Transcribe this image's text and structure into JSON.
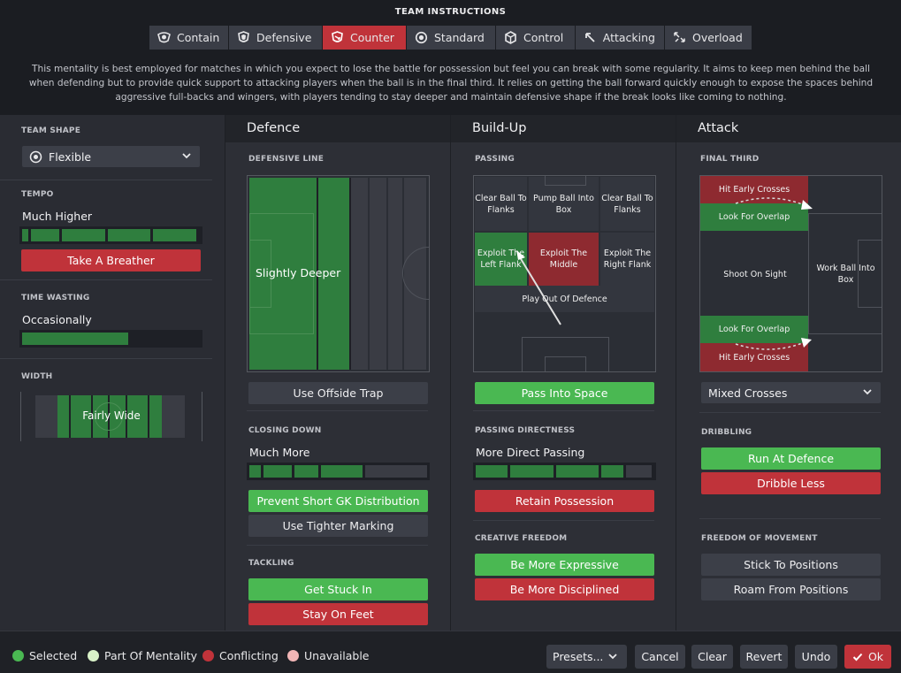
{
  "header": {
    "title": "TEAM INSTRUCTIONS",
    "tabs": [
      {
        "label": "Contain",
        "icon": "contain-shield-icon",
        "active": false
      },
      {
        "label": "Defensive",
        "icon": "defensive-shield-icon",
        "active": false
      },
      {
        "label": "Counter",
        "icon": "counter-icon",
        "active": true
      },
      {
        "label": "Standard",
        "icon": "standard-icon",
        "active": false
      },
      {
        "label": "Control",
        "icon": "control-icon",
        "active": false
      },
      {
        "label": "Attacking",
        "icon": "attacking-arrow-icon",
        "active": false
      },
      {
        "label": "Overload",
        "icon": "overload-arrows-icon",
        "active": false
      }
    ],
    "description": "This mentality is best employed for matches in which you expect to lose the battle for possession but feel you can break with some regularity.  It aims to keep men behind the ball when defending but to provide quick support to attacking players when the ball is in the final third. It relies on getting the ball forward quickly enough to expose the spaces behind aggressive full-backs and wingers, with players tending to stay deeper and maintain defensive shape if the break looks like coming to nothing."
  },
  "left": {
    "team_shape_label": "TEAM SHAPE",
    "team_shape_value": "Flexible",
    "tempo_label": "TEMPO",
    "tempo_value": "Much Higher",
    "tempo_level": 1.0,
    "tempo_button": "Take A Breather",
    "time_wasting_label": "TIME WASTING",
    "time_wasting_value": "Occasionally",
    "time_wasting_level": 0.6,
    "width_label": "WIDTH",
    "width_value": "Fairly Wide"
  },
  "defence": {
    "title": "Defence",
    "line_label": "DEFENSIVE LINE",
    "line_value": "Slightly Deeper",
    "offside_button": "Use Offside Trap",
    "closing_label": "CLOSING DOWN",
    "closing_value": "Much More",
    "closing_level": 0.8,
    "gk_button": "Prevent Short GK Distribution",
    "marking_button": "Use Tighter Marking",
    "tackling_label": "TACKLING",
    "stuck_button": "Get Stuck In",
    "feet_button": "Stay On Feet"
  },
  "buildup": {
    "title": "Build-Up",
    "passing_label": "PASSING",
    "zones": {
      "clear_left": "Clear Ball To Flanks",
      "pump": "Pump Ball Into Box",
      "clear_right": "Clear Ball To Flanks",
      "exploit_left": "Exploit The Left Flank",
      "exploit_middle": "Exploit The Middle",
      "exploit_right": "Exploit The Right Flank",
      "play_out": "Play Out Of Defence"
    },
    "space_button": "Pass Into Space",
    "directness_label": "PASSING DIRECTNESS",
    "directness_value": "More Direct Passing",
    "directness_level": 0.8,
    "retain_button": "Retain Possession",
    "creative_label": "CREATIVE FREEDOM",
    "expressive_button": "Be More Expressive",
    "disciplined_button": "Be More Disciplined"
  },
  "attack": {
    "title": "Attack",
    "final_third_label": "FINAL THIRD",
    "zones": {
      "crosses_top": "Hit Early Crosses",
      "overlap_top": "Look For Overlap",
      "shoot": "Shoot On Sight",
      "work_ball": "Work Ball Into Box",
      "overlap_bottom": "Look For Overlap",
      "crosses_bottom": "Hit Early Crosses"
    },
    "crosses_dropdown": "Mixed Crosses",
    "dribbling_label": "DRIBBLING",
    "run_button": "Run At Defence",
    "dribble_less_button": "Dribble Less",
    "freedom_label": "FREEDOM OF MOVEMENT",
    "stick_button": "Stick To Positions",
    "roam_button": "Roam From Positions"
  },
  "footer": {
    "legend": [
      {
        "label": "Selected",
        "color": "#4ab852"
      },
      {
        "label": "Part Of Mentality",
        "color": "#d9f2c8"
      },
      {
        "label": "Conflicting",
        "color": "#c0333a"
      },
      {
        "label": "Unavailable",
        "color": "#f2b6b6"
      }
    ],
    "presets": "Presets...",
    "cancel": "Cancel",
    "clear": "Clear",
    "revert": "Revert",
    "undo": "Undo",
    "ok": "Ok"
  },
  "colors": {
    "selected": "#4ab852",
    "conflicting": "#c0333a",
    "bar_green": "#2f7e3e",
    "panel": "#2d2f36"
  }
}
